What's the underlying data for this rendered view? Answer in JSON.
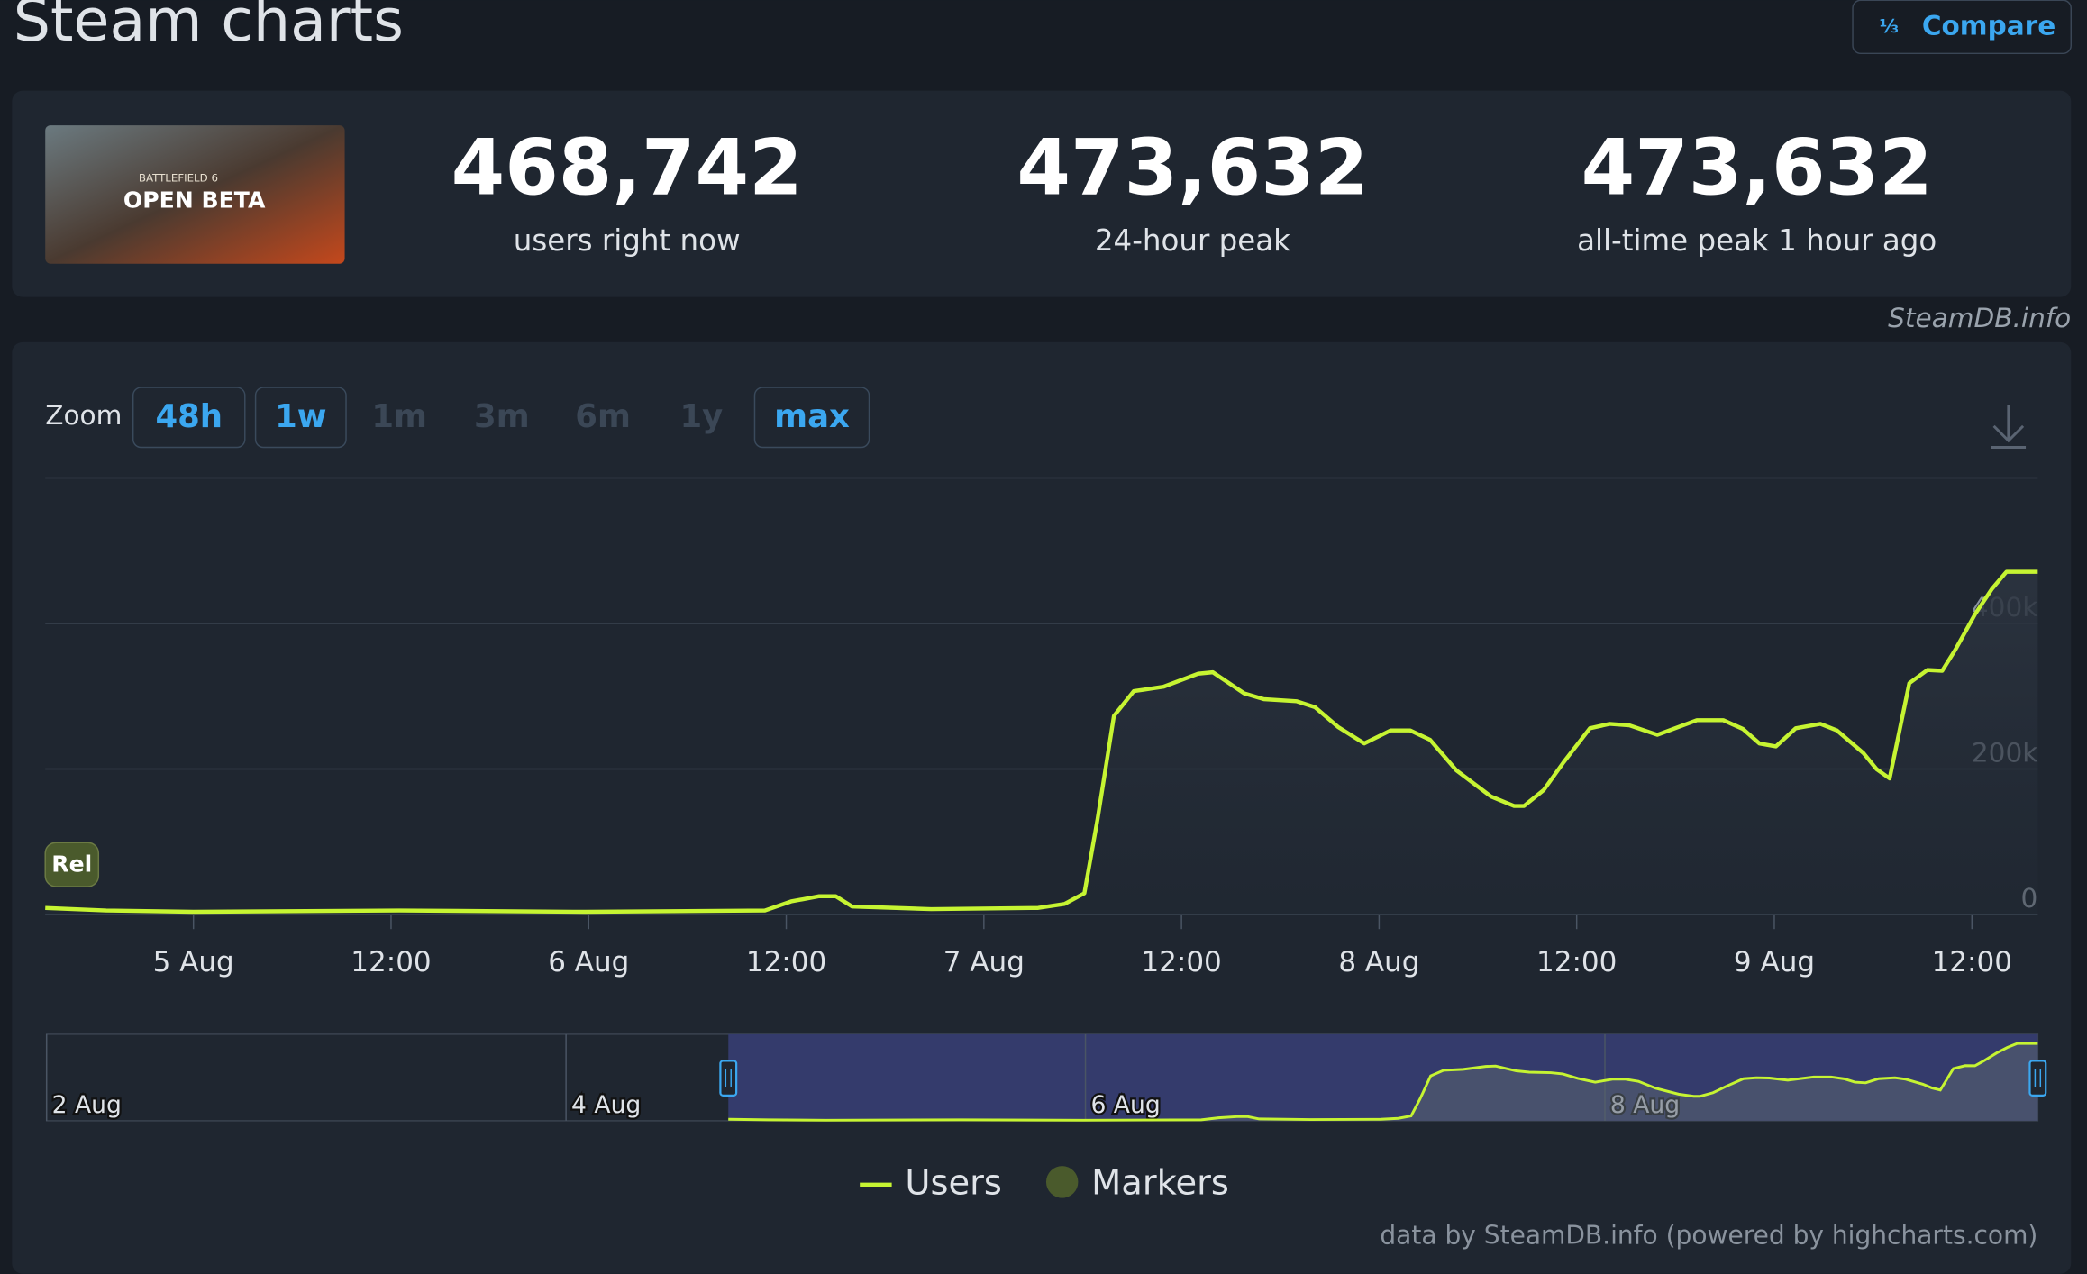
{
  "header": {
    "title": "Steam charts",
    "compare": "Compare"
  },
  "thumbnail": {
    "line1": "BATTLEFIELD 6",
    "line2": "OPEN BETA"
  },
  "stats": [
    {
      "value": "468,742",
      "label": "users right now"
    },
    {
      "value": "473,632",
      "label": "24-hour peak"
    },
    {
      "value": "473,632",
      "label": "all-time peak 1 hour ago"
    }
  ],
  "source": "SteamDB.info",
  "zoom": {
    "label": "Zoom",
    "buttons": [
      {
        "text": "48h",
        "enabled": true
      },
      {
        "text": "1w",
        "enabled": true
      },
      {
        "text": "1m",
        "enabled": false
      },
      {
        "text": "3m",
        "enabled": false
      },
      {
        "text": "6m",
        "enabled": false
      },
      {
        "text": "1y",
        "enabled": false
      },
      {
        "text": "max",
        "enabled": true
      }
    ]
  },
  "chart_data": {
    "type": "line",
    "x": [
      -9,
      -5.3,
      0,
      12.5,
      23.8,
      34.7,
      36.3,
      38,
      39,
      40,
      44.8,
      51.3,
      52.9,
      54.1,
      54.9,
      55.9,
      57.1,
      58.9,
      61,
      61.9,
      63.8,
      65,
      67,
      68.1,
      69.5,
      71.1,
      72.7,
      73.9,
      75.1,
      76.7,
      78.8,
      80.2,
      80.8,
      82,
      83.2,
      84.8,
      86,
      87.2,
      88.9,
      91.3,
      92.9,
      94.1,
      95.1,
      96.1,
      97.3,
      98.8,
      99.8,
      101.4,
      102.2,
      103,
      104.2,
      105.3,
      106.2,
      107,
      108.2,
      109.2,
      110.1,
      112
    ],
    "series": [
      {
        "name": "Users",
        "color": "#c6f432",
        "values": [
          9000,
          5500,
          3600,
          5500,
          3600,
          5500,
          18000,
          25000,
          25000,
          11000,
          7300,
          9000,
          14500,
          29000,
          131000,
          273000,
          307000,
          313000,
          331000,
          333000,
          304000,
          296000,
          293000,
          285000,
          258000,
          235000,
          253000,
          253000,
          240000,
          198000,
          162000,
          149000,
          149000,
          171000,
          209000,
          256000,
          262000,
          260000,
          247000,
          267000,
          267000,
          255000,
          235000,
          231000,
          256000,
          262000,
          253000,
          222000,
          200000,
          187000,
          318000,
          336000,
          335000,
          364000,
          413000,
          447000,
          471000,
          471000
        ]
      }
    ],
    "markers": {
      "name": "Markers",
      "color": "#4a5a2c",
      "items": [
        {
          "label": "Rel",
          "x": -9
        }
      ]
    },
    "xlim": [
      -9,
      112
    ],
    "xticks": [
      {
        "value": 0,
        "label": "5 Aug"
      },
      {
        "value": 12,
        "label": "12:00"
      },
      {
        "value": 24,
        "label": "6 Aug"
      },
      {
        "value": 36,
        "label": "12:00"
      },
      {
        "value": 48,
        "label": "7 Aug"
      },
      {
        "value": 60,
        "label": "12:00"
      },
      {
        "value": 72,
        "label": "8 Aug"
      },
      {
        "value": 84,
        "label": "12:00"
      },
      {
        "value": 96,
        "label": "9 Aug"
      },
      {
        "value": 108,
        "label": "12:00"
      }
    ],
    "ylim": [
      0,
      600000
    ],
    "yticks": [
      0,
      {
        "value": 200000,
        "label": "200k"
      },
      {
        "value": 400000,
        "label": "400k"
      },
      {
        "value": 600000,
        "label": ""
      }
    ],
    "grid": true,
    "navigator": {
      "xlim": [
        -72,
        112
      ],
      "ylim": [
        0,
        527000
      ],
      "selection": [
        -9,
        112
      ],
      "xticks": [
        {
          "value": -72,
          "label": "2 Aug"
        },
        {
          "value": -24,
          "label": "4 Aug"
        },
        {
          "value": 24,
          "label": "6 Aug"
        },
        {
          "value": 72,
          "label": "8 Aug"
        }
      ]
    },
    "credits": "data by SteamDB.info (powered by highcharts.com)"
  }
}
